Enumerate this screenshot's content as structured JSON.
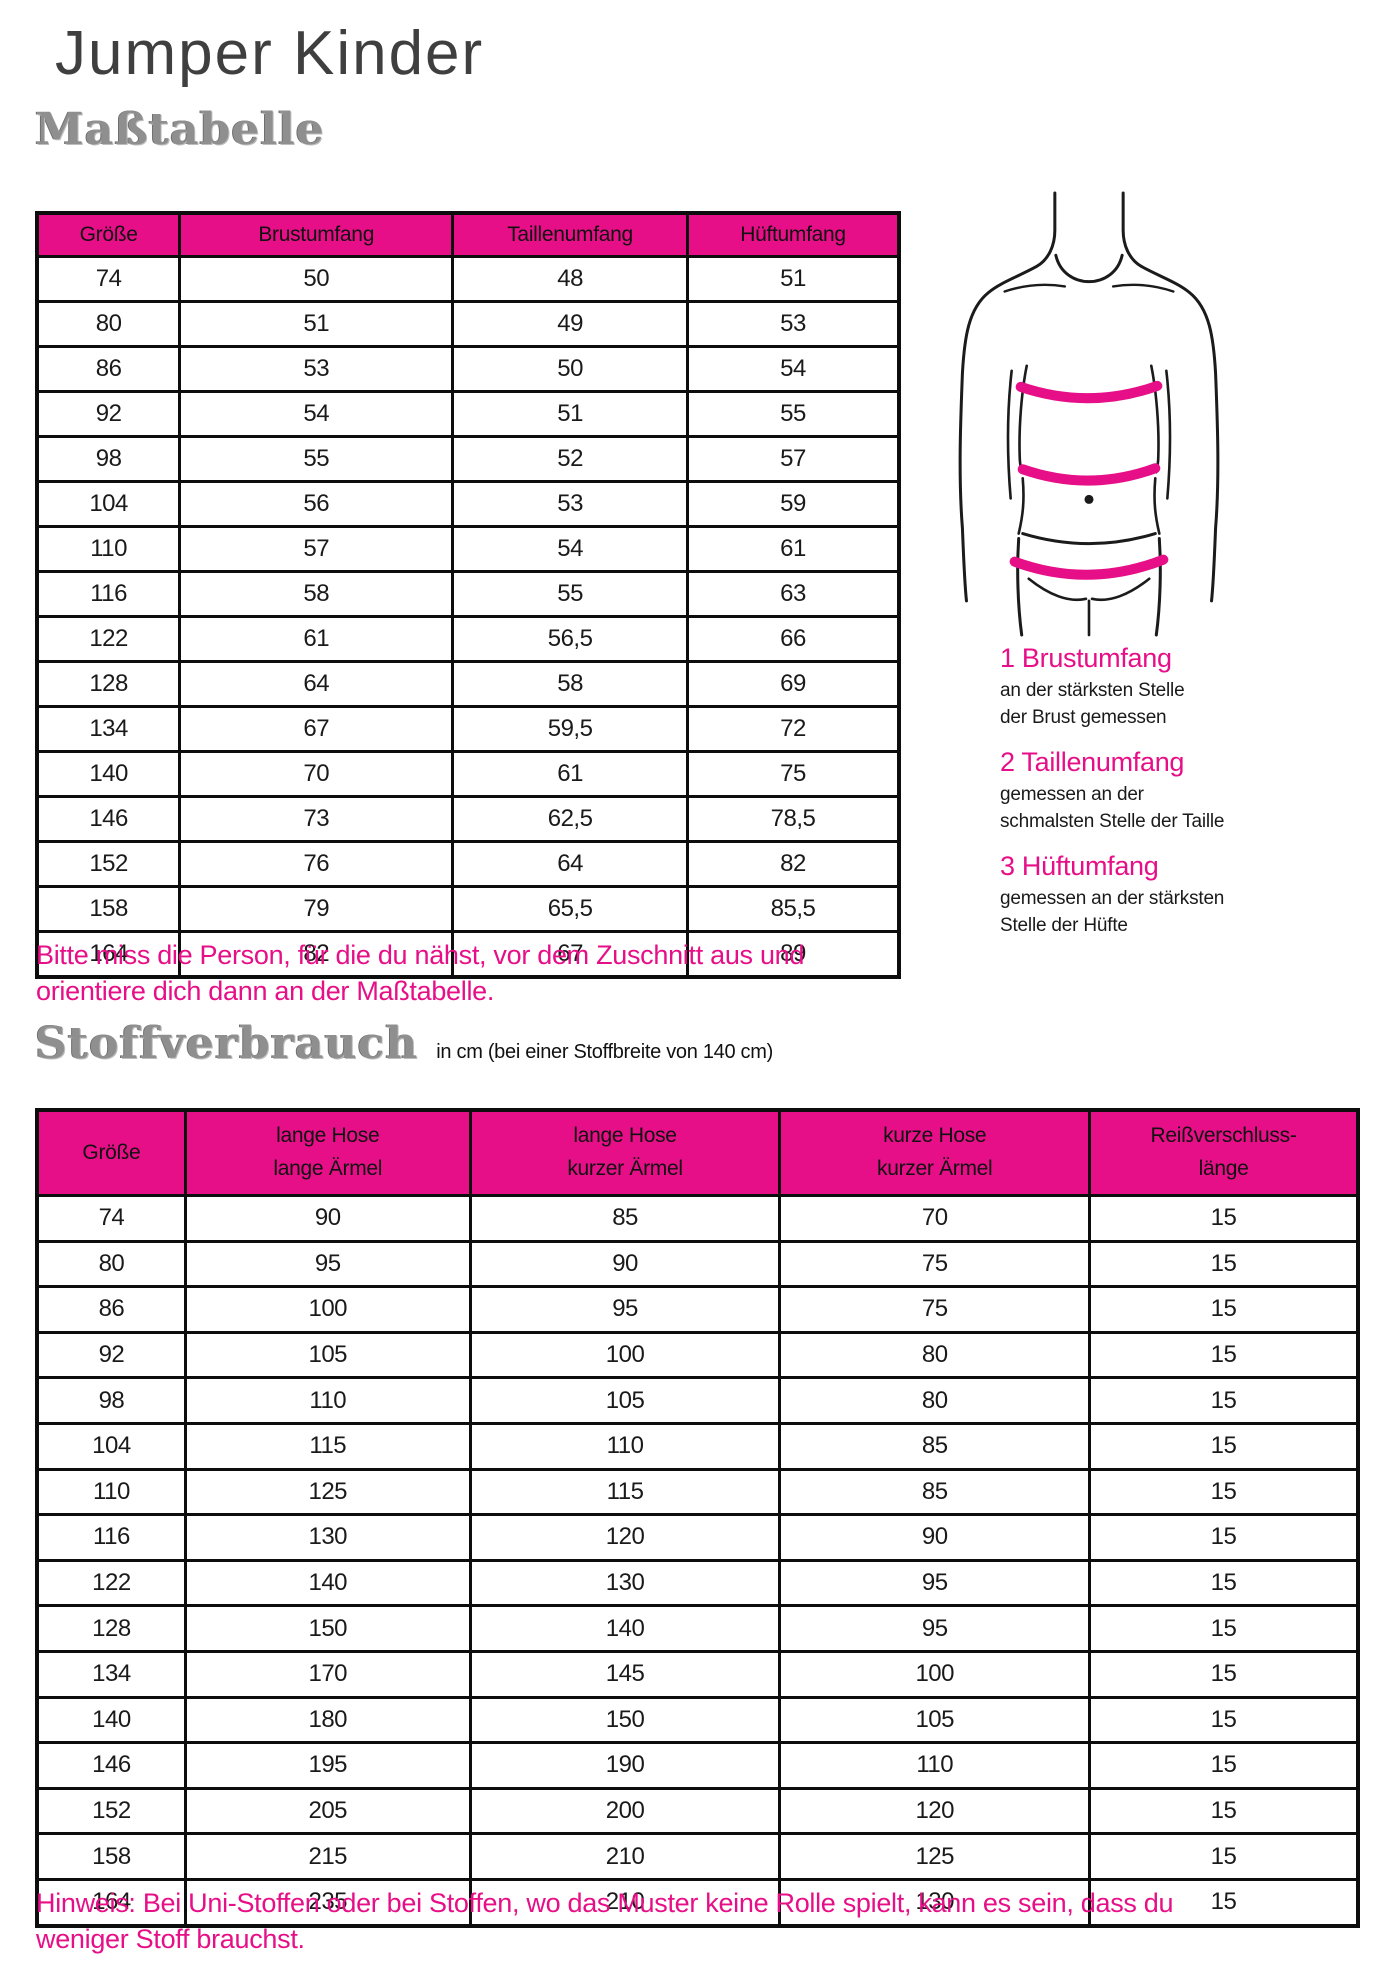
{
  "page": {
    "title": "Jumper Kinder",
    "accent_color": "#e60f87"
  },
  "masstabelle": {
    "heading": "Maßtabelle",
    "columns": [
      "Größe",
      "Brustumfang",
      "Taillenumfang",
      "Hüftumfang"
    ],
    "rows": [
      [
        "74",
        "50",
        "48",
        "51"
      ],
      [
        "80",
        "51",
        "49",
        "53"
      ],
      [
        "86",
        "53",
        "50",
        "54"
      ],
      [
        "92",
        "54",
        "51",
        "55"
      ],
      [
        "98",
        "55",
        "52",
        "57"
      ],
      [
        "104",
        "56",
        "53",
        "59"
      ],
      [
        "110",
        "57",
        "54",
        "61"
      ],
      [
        "116",
        "58",
        "55",
        "63"
      ],
      [
        "122",
        "61",
        "56,5",
        "66"
      ],
      [
        "128",
        "64",
        "58",
        "69"
      ],
      [
        "134",
        "67",
        "59,5",
        "72"
      ],
      [
        "140",
        "70",
        "61",
        "75"
      ],
      [
        "146",
        "73",
        "62,5",
        "78,5"
      ],
      [
        "152",
        "76",
        "64",
        "82"
      ],
      [
        "158",
        "79",
        "65,5",
        "85,5"
      ],
      [
        "164",
        "82",
        "67",
        "89"
      ]
    ]
  },
  "figure": {
    "name": "body-measurement-figure",
    "legend": [
      {
        "label": "1 Brustumfang",
        "desc": "an der stärksten Stelle\nder Brust gemessen"
      },
      {
        "label": "2 Taillenumfang",
        "desc": "gemessen an der\nschmalsten Stelle der Taille"
      },
      {
        "label": "3 Hüftumfang",
        "desc": "gemessen an der stärksten\nStelle der Hüfte"
      }
    ]
  },
  "note_measure": "Bitte miss die Person, für die du nähst, vor dem Zuschnitt aus und\norientiere dich dann an der Maßtabelle.",
  "stoffverbrauch": {
    "heading": "Stoffverbrauch",
    "subtitle": "in cm (bei einer Stoffbreite von 140 cm)",
    "columns": [
      "Größe",
      "lange Hose\nlange Ärmel",
      "lange Hose\nkurzer Ärmel",
      "kurze Hose\nkurzer Ärmel",
      "Reißverschluss-\nlänge"
    ],
    "rows": [
      [
        "74",
        "90",
        "85",
        "70",
        "15"
      ],
      [
        "80",
        "95",
        "90",
        "75",
        "15"
      ],
      [
        "86",
        "100",
        "95",
        "75",
        "15"
      ],
      [
        "92",
        "105",
        "100",
        "80",
        "15"
      ],
      [
        "98",
        "110",
        "105",
        "80",
        "15"
      ],
      [
        "104",
        "115",
        "110",
        "85",
        "15"
      ],
      [
        "110",
        "125",
        "115",
        "85",
        "15"
      ],
      [
        "116",
        "130",
        "120",
        "90",
        "15"
      ],
      [
        "122",
        "140",
        "130",
        "95",
        "15"
      ],
      [
        "128",
        "150",
        "140",
        "95",
        "15"
      ],
      [
        "134",
        "170",
        "145",
        "100",
        "15"
      ],
      [
        "140",
        "180",
        "150",
        "105",
        "15"
      ],
      [
        "146",
        "195",
        "190",
        "110",
        "15"
      ],
      [
        "152",
        "205",
        "200",
        "120",
        "15"
      ],
      [
        "158",
        "215",
        "210",
        "125",
        "15"
      ],
      [
        "164",
        "235",
        "210",
        "130",
        "15"
      ]
    ]
  },
  "note_fabric": "Hinweis: Bei Uni-Stoffen oder bei Stoffen, wo das Muster keine Rolle spielt, kann es sein, dass du\nweniger Stoff brauchst."
}
